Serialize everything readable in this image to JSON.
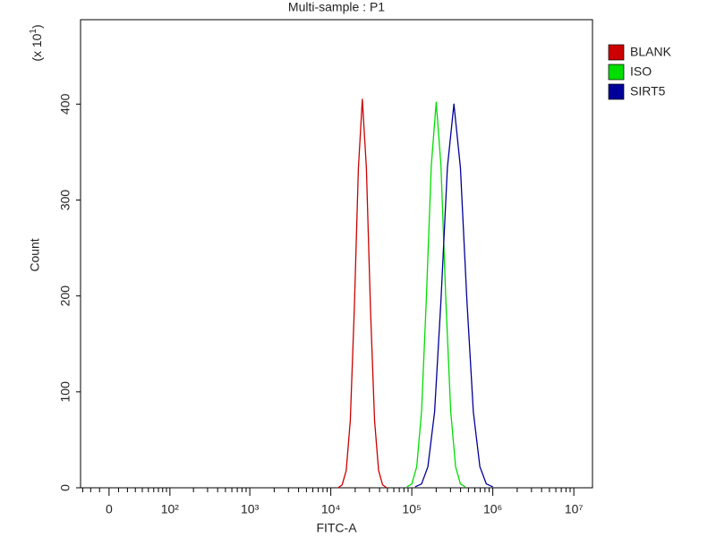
{
  "chart_data": {
    "type": "line",
    "title": "Multi-sample : P1",
    "xlabel": "FITC-A",
    "ylabel": "Count",
    "ylabel_multiplier": {
      "prefix": "(x 10",
      "exponent": "1",
      "suffix": ")"
    },
    "xscale": "asinh",
    "xlim": [
      -33,
      17000000
    ],
    "ylim": [
      0,
      488
    ],
    "xticks": [
      0,
      {
        "value": 100,
        "label": "10²"
      },
      {
        "value": 1000,
        "label": "10³"
      },
      {
        "value": 10000,
        "label": "10⁴"
      },
      {
        "value": 100000,
        "label": "10⁵"
      },
      {
        "value": 1000000,
        "label": "10⁶"
      },
      {
        "value": 10000000,
        "label": "10⁷"
      }
    ],
    "xminorticks": [
      -30,
      -20,
      -10,
      10,
      20,
      30,
      40,
      50,
      60,
      70,
      80,
      90,
      200,
      300,
      400,
      500,
      600,
      700,
      800,
      900,
      2000,
      3000,
      4000,
      5000,
      6000,
      7000,
      8000,
      9000,
      20000,
      30000,
      40000,
      50000,
      60000,
      70000,
      80000,
      90000,
      200000,
      300000,
      400000,
      500000,
      600000,
      700000,
      800000,
      900000,
      2000000,
      3000000,
      4000000,
      5000000,
      6000000,
      7000000,
      8000000,
      9000000
    ],
    "yticks": [
      0,
      100,
      200,
      300,
      400
    ],
    "legend": "upper-right-outside",
    "series": [
      {
        "name": "BLANK",
        "color": "#cc0000",
        "x": [
          12300,
          13800,
          15500,
          17400,
          19500,
          21900,
          24500,
          27500,
          30900,
          34700,
          38900,
          43600,
          49000
        ],
        "values": [
          0,
          3,
          18,
          70,
          186,
          333,
          405,
          333,
          186,
          70,
          18,
          3,
          0
        ]
      },
      {
        "name": "ISO",
        "color": "#00dd00",
        "x": [
          87100,
          100000,
          115000,
          132000,
          151000,
          174000,
          200000,
          229000,
          263000,
          302000,
          347000,
          398000,
          457000
        ],
        "values": [
          1,
          4,
          22,
          80,
          196,
          336,
          402,
          336,
          196,
          80,
          22,
          4,
          1
        ]
      },
      {
        "name": "SIRT5",
        "color": "#000099",
        "x": [
          110000,
          132000,
          158000,
          191000,
          229000,
          275000,
          331000,
          398000,
          479000,
          575000,
          692000,
          832000,
          1000000
        ],
        "values": [
          1,
          4,
          22,
          79,
          195,
          334,
          400,
          334,
          195,
          79,
          22,
          4,
          1
        ]
      }
    ]
  }
}
